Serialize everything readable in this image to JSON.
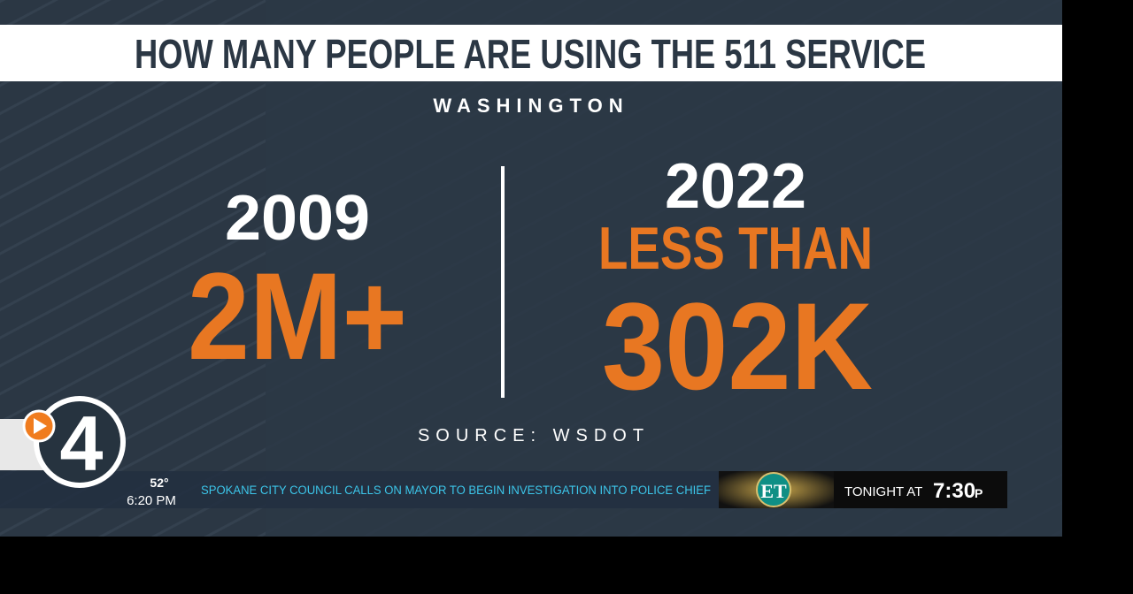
{
  "graphic": {
    "title": "HOW MANY PEOPLE ARE USING THE 511 SERVICE",
    "region": "WASHINGTON",
    "left": {
      "year": "2009",
      "value": "2M+"
    },
    "right": {
      "year": "2022",
      "qualifier": "LESS THAN",
      "value": "302K"
    },
    "source": "SOURCE: WSDOT"
  },
  "ticker": {
    "logo": "4",
    "temperature": "52°",
    "time": "6:20 PM",
    "headline": "SPOKANE CITY COUNCIL CALLS ON MAYOR TO BEGIN INVESTIGATION INTO POLICE CHIEF",
    "promo": {
      "show": "ET",
      "lead": "TONIGHT AT",
      "time": "7:30",
      "suffix": "P"
    }
  }
}
